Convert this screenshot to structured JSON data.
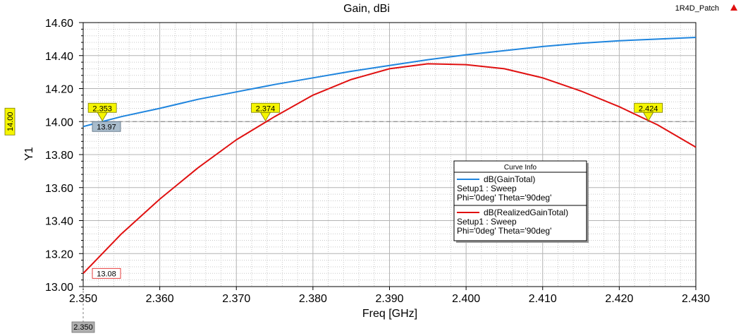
{
  "window": {
    "title": "Gain, dBi",
    "project": "1R4D_Patch"
  },
  "chart_data": {
    "type": "line",
    "title": "Gain, dBi",
    "xlabel": "Freq [GHz]",
    "ylabel": "Y1",
    "xlim": [
      2.35,
      2.43
    ],
    "ylim": [
      13.0,
      14.6
    ],
    "x_ticks": [
      "2.350",
      "2.360",
      "2.370",
      "2.380",
      "2.390",
      "2.400",
      "2.410",
      "2.420",
      "2.430"
    ],
    "y_ticks": [
      "13.00",
      "13.20",
      "13.40",
      "13.60",
      "13.80",
      "14.00",
      "14.20",
      "14.40",
      "14.60"
    ],
    "grid": true,
    "legend_position": "right",
    "x": [
      2.35,
      2.355,
      2.36,
      2.365,
      2.37,
      2.375,
      2.38,
      2.385,
      2.39,
      2.395,
      2.4,
      2.405,
      2.41,
      2.415,
      2.42,
      2.425,
      2.43
    ],
    "series": [
      {
        "name": "dB(GainTotal)",
        "color": "#1f85de",
        "values": [
          13.97,
          14.03,
          14.08,
          14.135,
          14.18,
          14.225,
          14.265,
          14.305,
          14.34,
          14.375,
          14.405,
          14.43,
          14.455,
          14.475,
          14.49,
          14.5,
          14.51
        ]
      },
      {
        "name": "dB(RealizedGainTotal)",
        "color": "#e01010",
        "values": [
          13.08,
          13.32,
          13.53,
          13.72,
          13.89,
          14.03,
          14.16,
          14.255,
          14.32,
          14.35,
          14.345,
          14.32,
          14.265,
          14.185,
          14.09,
          13.98,
          13.845
        ]
      }
    ],
    "reference_line": {
      "y": 14.0,
      "label": "14.00",
      "color": "#808080"
    },
    "cursor": {
      "x": 2.35,
      "label": "2.350"
    },
    "markers": [
      {
        "label": "2.353",
        "x": 2.3525,
        "y": 14.0
      },
      {
        "label": "2.374",
        "x": 2.3738,
        "y": 14.0
      },
      {
        "label": "2.424",
        "x": 2.4238,
        "y": 14.0
      }
    ],
    "value_tags": [
      {
        "label": "13.97",
        "y": 13.97
      },
      {
        "label": "13.08",
        "y": 13.08
      }
    ],
    "legend": {
      "title": "Curve Info",
      "entries": [
        {
          "name": "dB(GainTotal)",
          "lines": [
            "Setup1 : Sweep",
            "Phi='0deg' Theta='90deg'"
          ],
          "color": "#1f85de"
        },
        {
          "name": "dB(RealizedGainTotal)",
          "lines": [
            "Setup1 : Sweep",
            "Phi='0deg' Theta='90deg'"
          ],
          "color": "#e01010"
        }
      ]
    }
  }
}
